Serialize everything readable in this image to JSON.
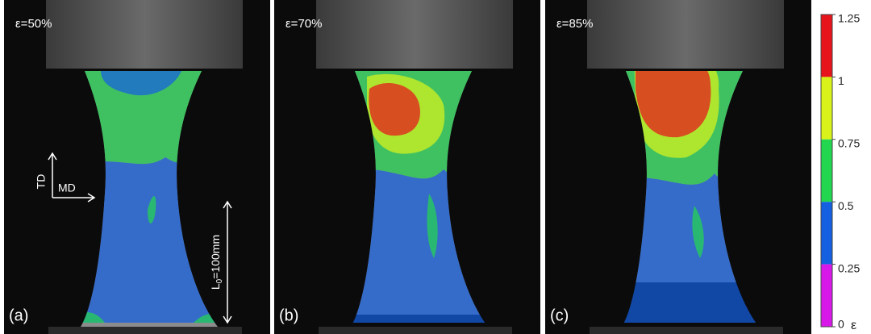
{
  "panels": [
    {
      "label": "(a)",
      "strain": "ε=50%"
    },
    {
      "label": "(b)",
      "strain": "ε=70%"
    },
    {
      "label": "(c)",
      "strain": "ε=85%"
    }
  ],
  "annotations": {
    "td": "TD",
    "md": "MD",
    "gauge_length": {
      "main": "L",
      "sub": "0",
      "rest": "=100mm"
    }
  },
  "colorbar": {
    "labels": [
      "1.25",
      "1",
      "0.75",
      "0.5",
      "0.25",
      "0"
    ],
    "symbol": "ε",
    "colors": [
      "#e8141c",
      "#d8f21a",
      "#22d650",
      "#1560e0",
      "#d818e8"
    ]
  }
}
